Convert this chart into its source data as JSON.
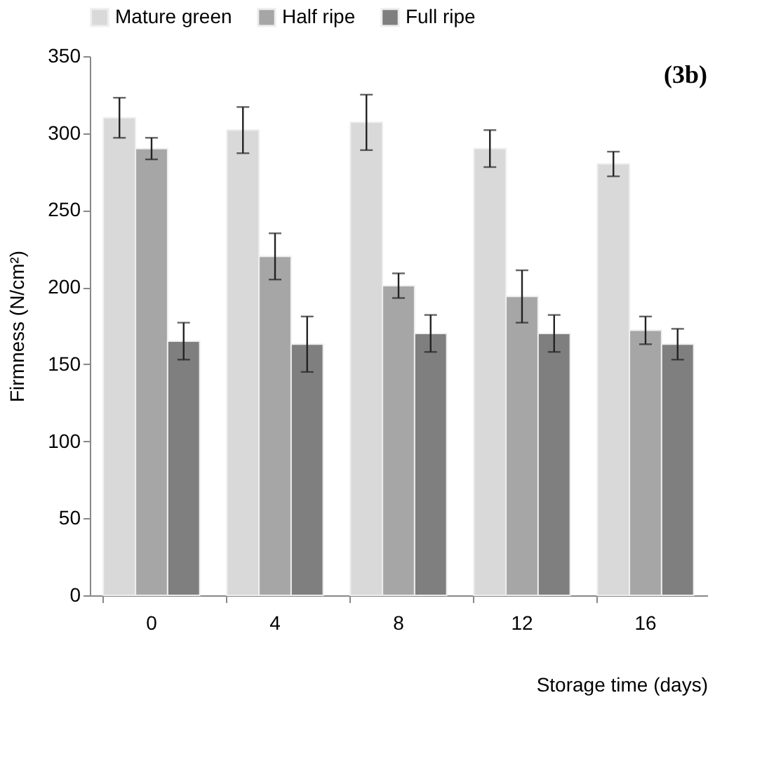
{
  "chart_data": {
    "type": "bar",
    "categories": [
      "0",
      "4",
      "8",
      "12",
      "16"
    ],
    "xlabel": "Storage time (days)",
    "ylabel": "Firmness (N/cm²)",
    "annotations": [
      "(3b)"
    ],
    "series": [
      {
        "name": "Mature green",
        "color": "#d9d9d9",
        "values": [
          310,
          302,
          307,
          290,
          280
        ],
        "errors": [
          13,
          15,
          18,
          12,
          8
        ]
      },
      {
        "name": "Half ripe",
        "color": "#a6a6a6",
        "values": [
          290,
          220,
          201,
          194,
          172
        ],
        "errors": [
          7,
          15,
          8,
          17,
          9
        ]
      },
      {
        "name": "Full ripe",
        "color": "#7f7f7f",
        "values": [
          165,
          163,
          170,
          170,
          163
        ],
        "errors": [
          12,
          18,
          12,
          12,
          10
        ]
      }
    ],
    "ylim": [
      0,
      350
    ],
    "yticks": [
      0,
      50,
      100,
      150,
      200,
      250,
      300,
      350
    ],
    "grid": false,
    "legend": "top"
  }
}
